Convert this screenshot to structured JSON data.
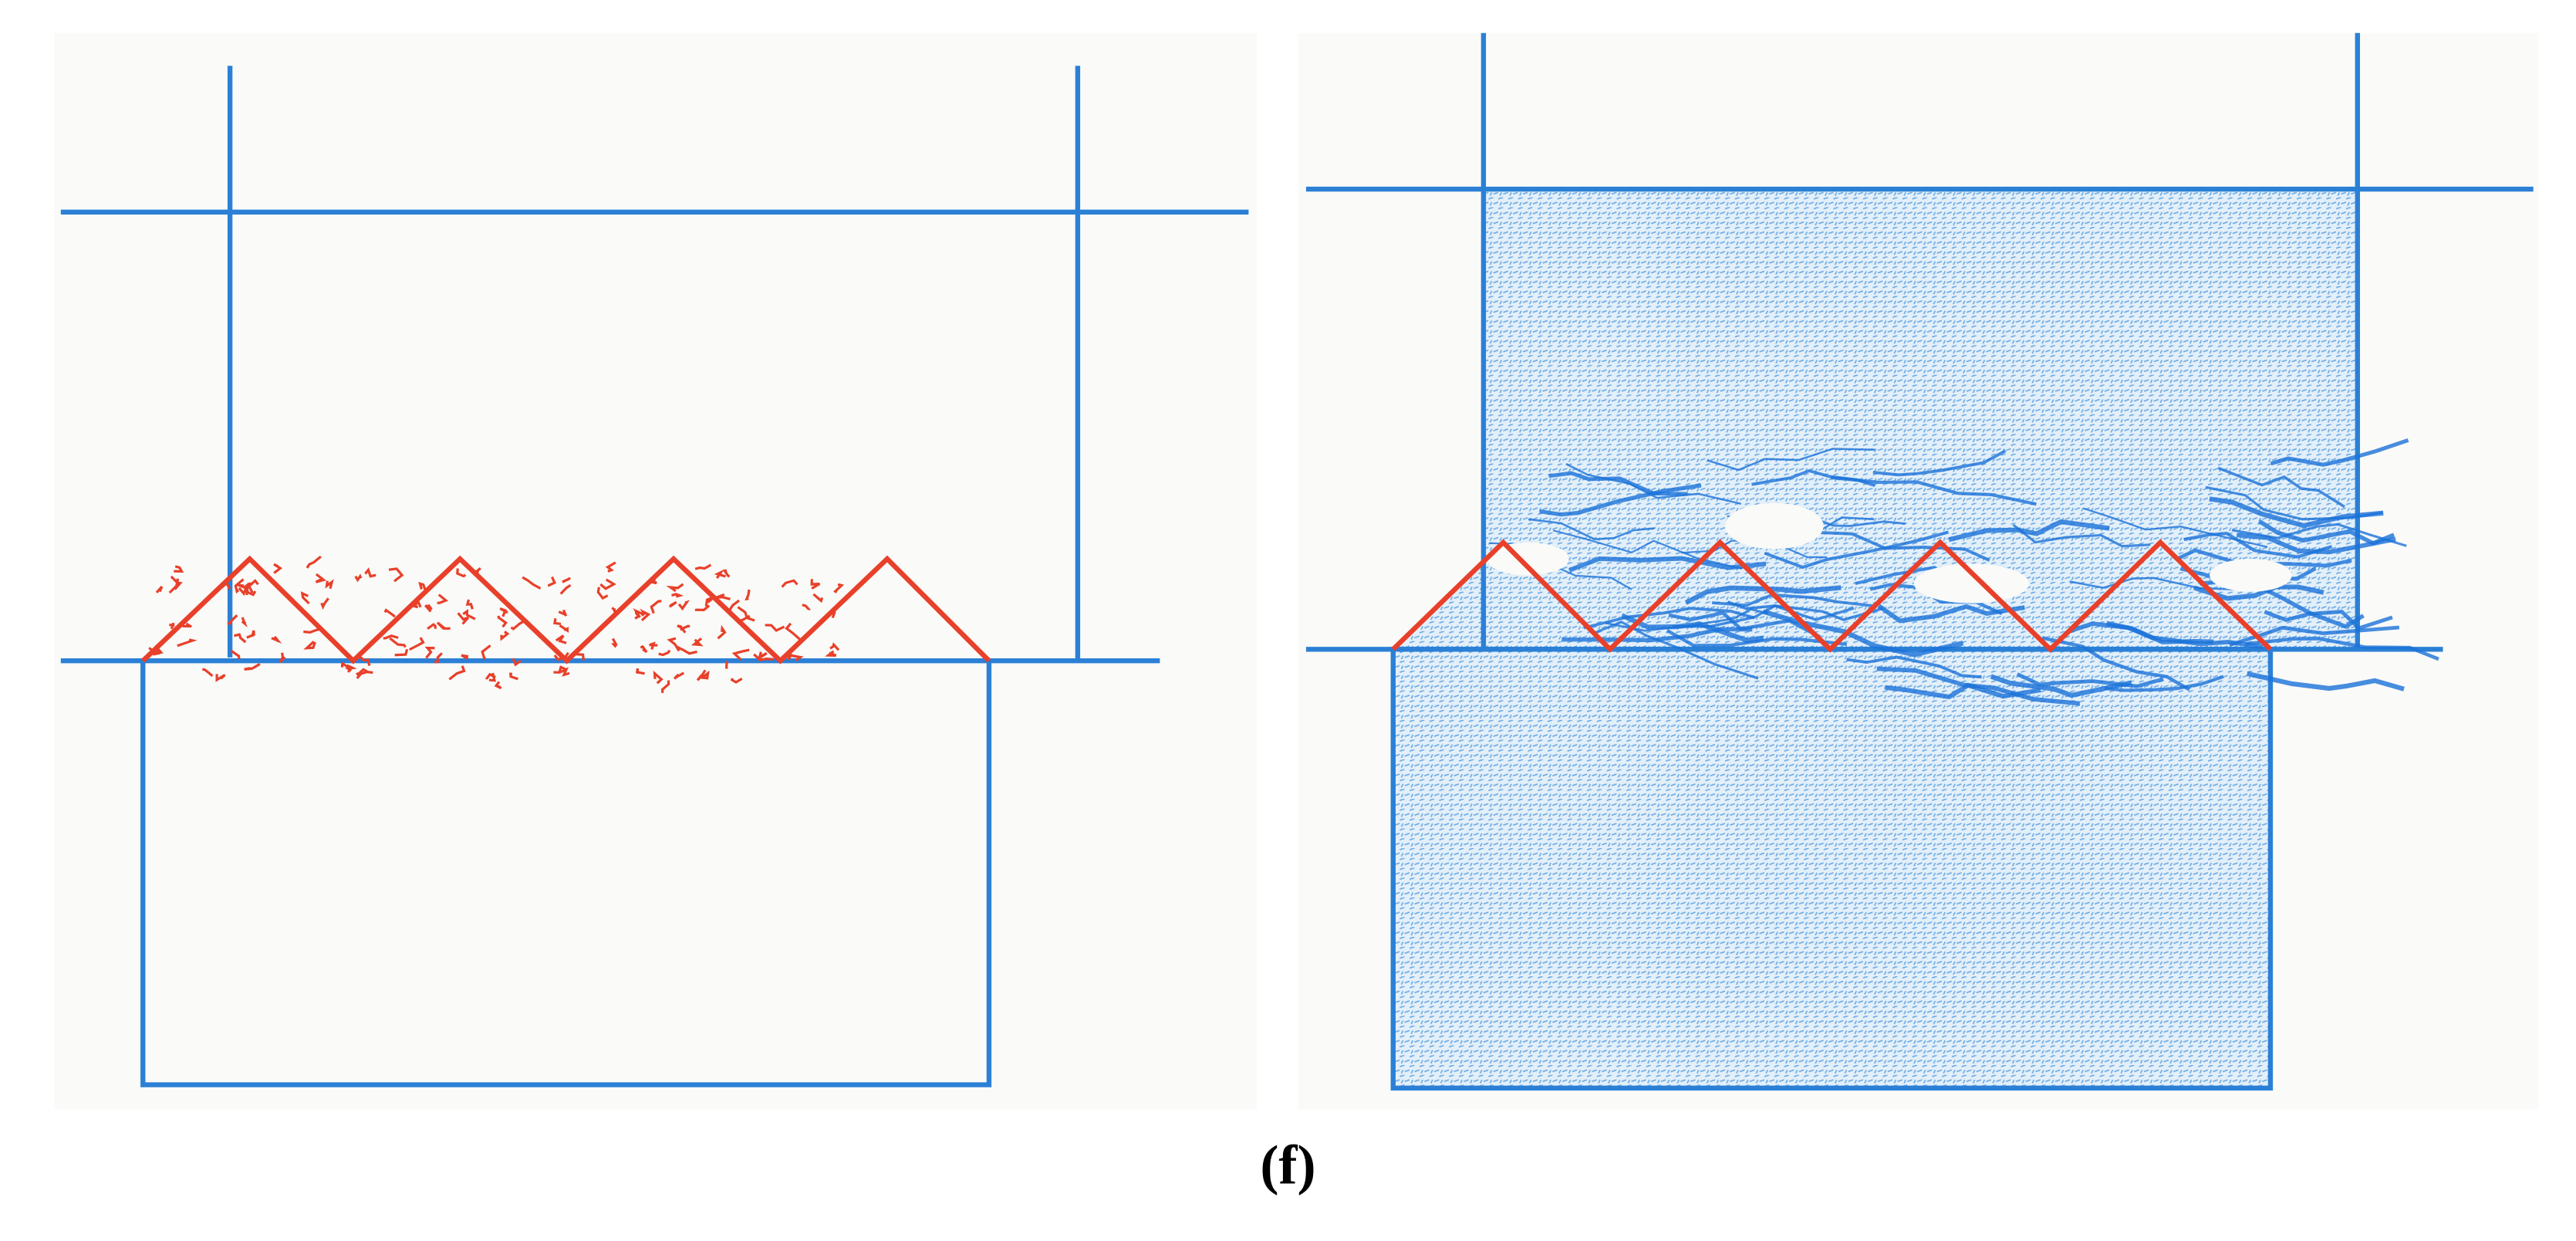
{
  "caption": "(f)"
}
